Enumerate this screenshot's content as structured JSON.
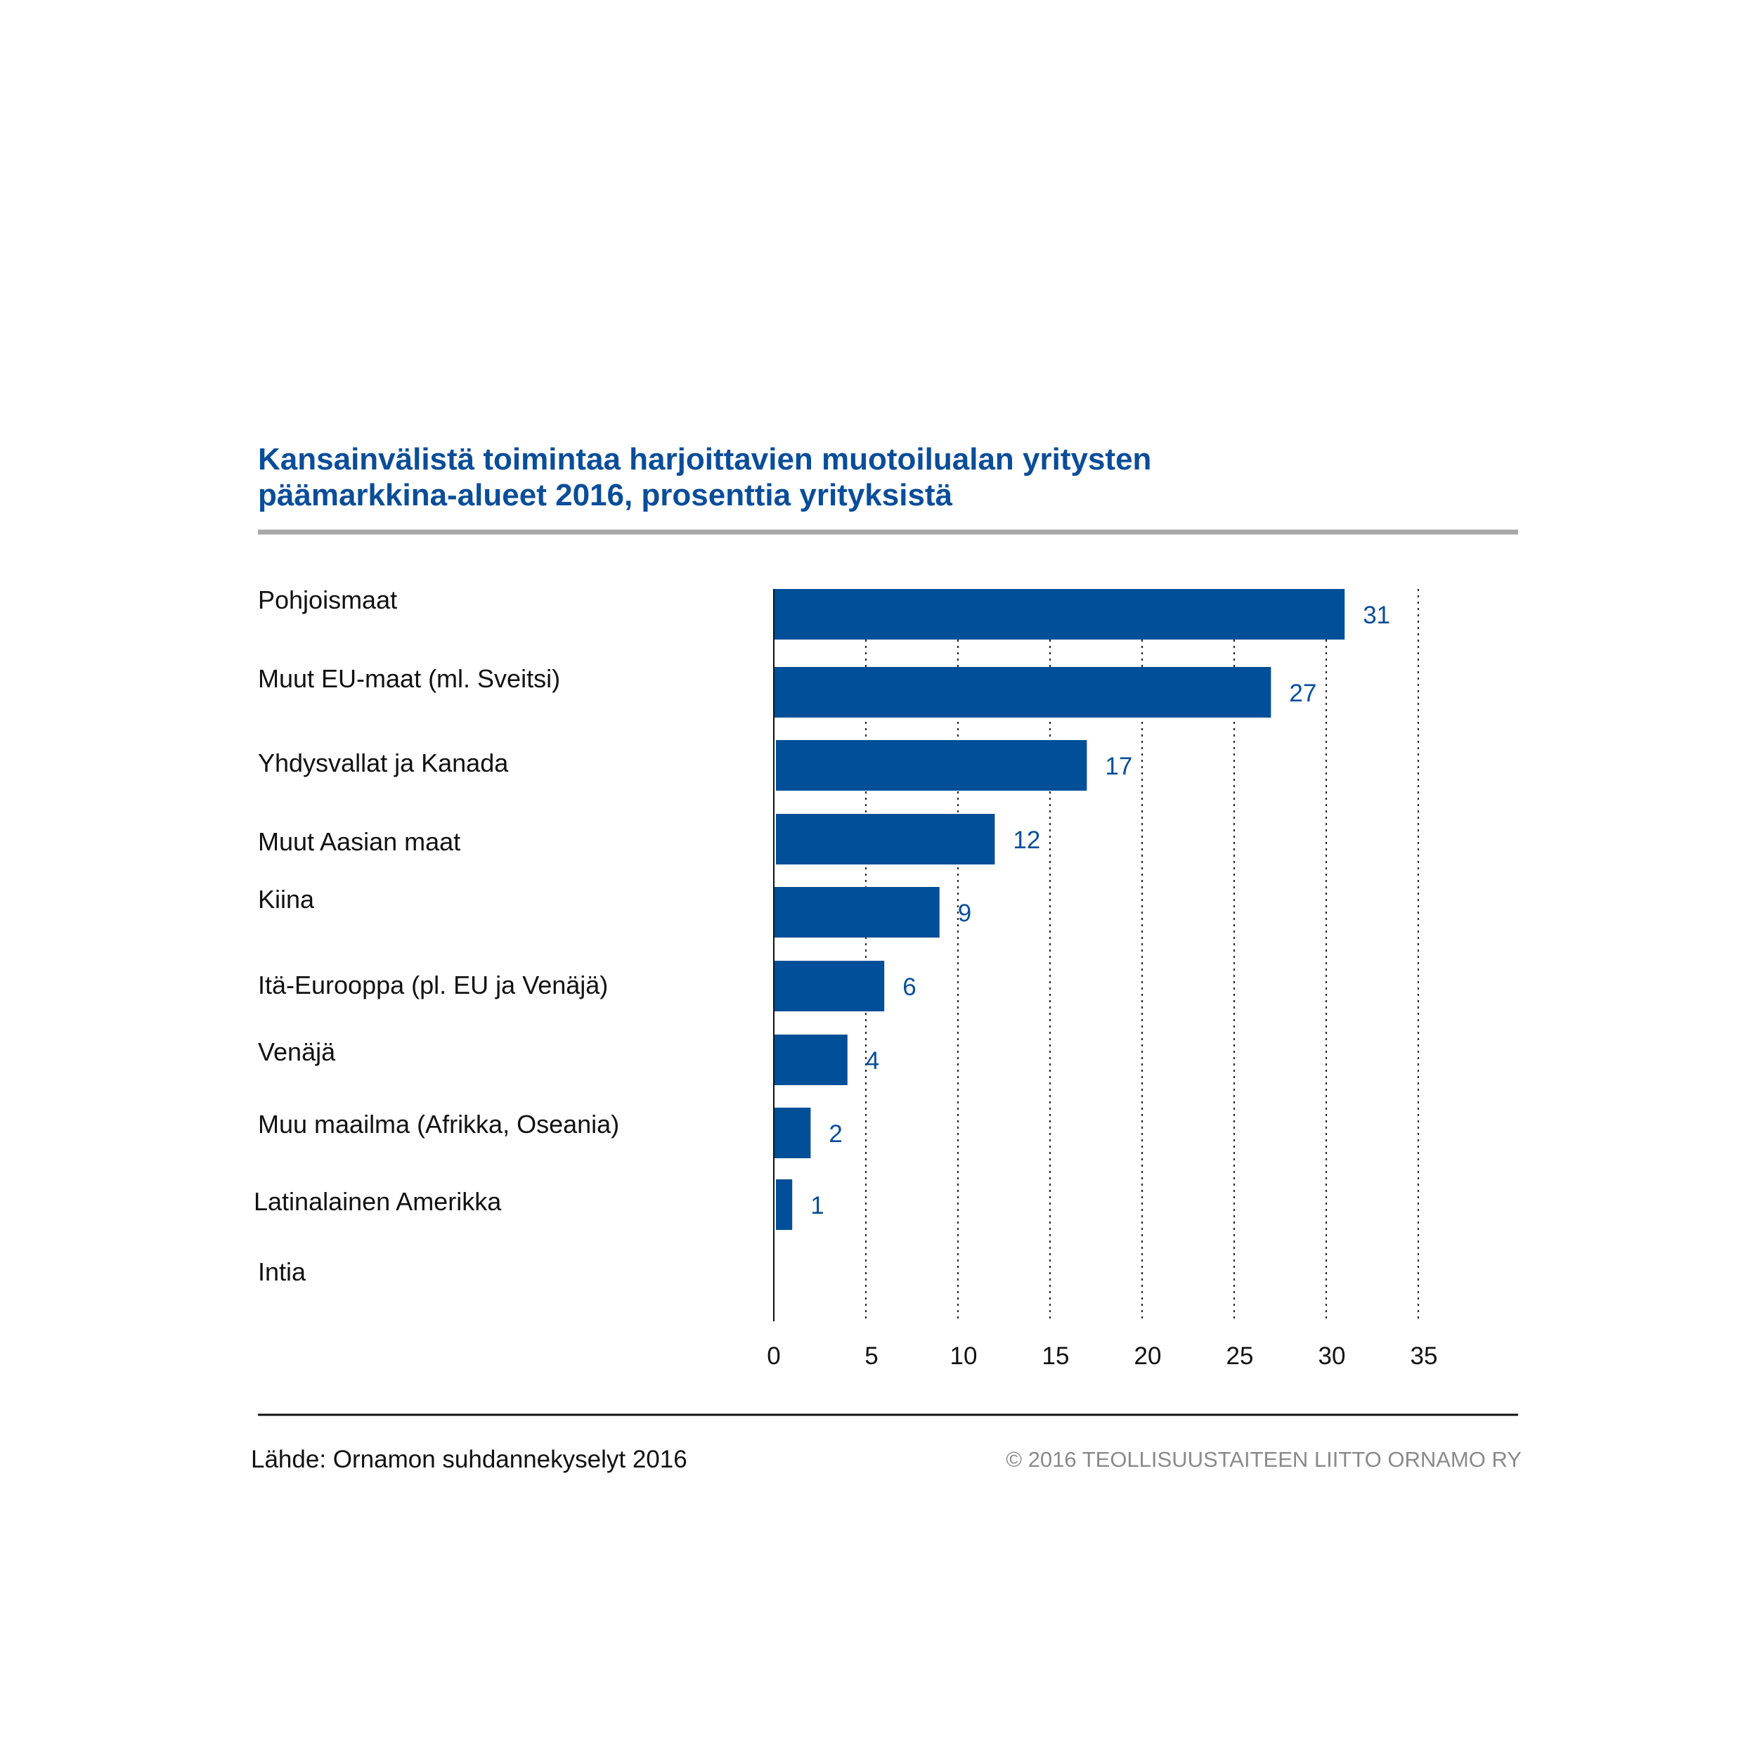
{
  "title_lines": [
    "Kansainvälistä toimintaa harjoittavien muotoilualan yritysten",
    "päämarkkina-alueet 2016, prosenttia yrityksistä"
  ],
  "source": "Lähde: Ornamon suhdannekyselyt 2016",
  "copyright": "© 2016 TEOLLISUUSTAITEEN LIITTO ORNAMO RY",
  "colors": {
    "title": "#0a4d98",
    "bar": "#004f98",
    "value_label": "#0a4d98",
    "rule_top": "#a8a8a8",
    "rule_bottom": "#111111",
    "copyright": "#8a8a8a"
  },
  "chart_data": {
    "type": "bar",
    "orientation": "horizontal",
    "categories": [
      "Pohjoismaat",
      "Muut EU-maat (ml. Sveitsi)",
      "Yhdysvallat ja Kanada",
      "Muut Aasian maat",
      "Kiina",
      "Itä-Eurooppa (pl. EU ja Venäjä)",
      "Venäjä",
      "Muu maailma (Afrikka, Oseania)",
      "Latinalainen Amerikka",
      "Intia"
    ],
    "values": [
      31,
      27,
      17,
      12,
      9,
      6,
      4,
      2,
      1,
      0
    ],
    "value_labels": [
      "31",
      "27",
      "17",
      "12",
      "9",
      "6",
      "4",
      "2",
      "1",
      ""
    ],
    "xlim": [
      0,
      35
    ],
    "xticks": [
      0,
      5,
      10,
      15,
      20,
      25,
      30,
      35
    ],
    "xtick_labels": [
      "0",
      "5",
      "10",
      "15",
      "20",
      "25",
      "30",
      "35"
    ],
    "grid": "vertical dotted",
    "legend": "none"
  }
}
